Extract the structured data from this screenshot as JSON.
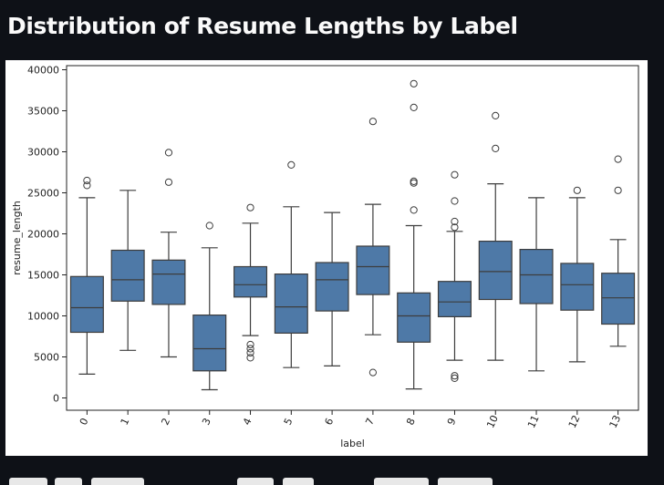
{
  "page": {
    "title": "Distribution of Resume Lengths by Label"
  },
  "chart_data": {
    "type": "box",
    "title": "",
    "xlabel": "label",
    "ylabel": "resume_length",
    "categories": [
      "0",
      "1",
      "2",
      "3",
      "4",
      "5",
      "6",
      "7",
      "8",
      "9",
      "10",
      "11",
      "12",
      "13"
    ],
    "ylim": [
      -1500,
      40500
    ],
    "yticks": [
      0,
      5000,
      10000,
      15000,
      20000,
      25000,
      30000,
      35000,
      40000
    ],
    "box_color": "#4e79a7",
    "line_color": "#3d3d3d",
    "grid": false,
    "boxes": [
      {
        "label": "0",
        "whisker_low": 2900,
        "q1": 8000,
        "median": 11000,
        "q3": 14800,
        "whisker_high": 24400,
        "outliers": [
          25900,
          26500
        ]
      },
      {
        "label": "1",
        "whisker_low": 5800,
        "q1": 11800,
        "median": 14400,
        "q3": 18000,
        "whisker_high": 25300,
        "outliers": []
      },
      {
        "label": "2",
        "whisker_low": 5000,
        "q1": 11400,
        "median": 15100,
        "q3": 16800,
        "whisker_high": 20200,
        "outliers": [
          26300,
          29900
        ]
      },
      {
        "label": "3",
        "whisker_low": 1000,
        "q1": 3300,
        "median": 6000,
        "q3": 10100,
        "whisker_high": 18300,
        "outliers": [
          21000
        ]
      },
      {
        "label": "4",
        "whisker_low": 7600,
        "q1": 12300,
        "median": 13800,
        "q3": 16000,
        "whisker_high": 21300,
        "outliers": [
          4900,
          5500,
          6000,
          6500,
          23200
        ]
      },
      {
        "label": "5",
        "whisker_low": 3700,
        "q1": 7900,
        "median": 11100,
        "q3": 15100,
        "whisker_high": 23300,
        "outliers": [
          28400
        ]
      },
      {
        "label": "6",
        "whisker_low": 3900,
        "q1": 10600,
        "median": 14400,
        "q3": 16500,
        "whisker_high": 22600,
        "outliers": []
      },
      {
        "label": "7",
        "whisker_low": 7700,
        "q1": 12600,
        "median": 16000,
        "q3": 18500,
        "whisker_high": 23600,
        "outliers": [
          3100,
          33700
        ]
      },
      {
        "label": "8",
        "whisker_low": 1100,
        "q1": 6800,
        "median": 10000,
        "q3": 12800,
        "whisker_high": 21000,
        "outliers": [
          22900,
          26200,
          26400,
          35400,
          38300
        ]
      },
      {
        "label": "9",
        "whisker_low": 4600,
        "q1": 9900,
        "median": 11700,
        "q3": 14200,
        "whisker_high": 20300,
        "outliers": [
          2400,
          2700,
          20800,
          21500,
          24000,
          27200
        ]
      },
      {
        "label": "10",
        "whisker_low": 4600,
        "q1": 12000,
        "median": 15400,
        "q3": 19100,
        "whisker_high": 26100,
        "outliers": [
          30400,
          34400
        ]
      },
      {
        "label": "11",
        "whisker_low": 3300,
        "q1": 11500,
        "median": 15000,
        "q3": 18100,
        "whisker_high": 24400,
        "outliers": []
      },
      {
        "label": "12",
        "whisker_low": 4400,
        "q1": 10700,
        "median": 13800,
        "q3": 16400,
        "whisker_high": 24400,
        "outliers": [
          25300
        ]
      },
      {
        "label": "13",
        "whisker_low": 6300,
        "q1": 9000,
        "median": 12200,
        "q3": 15200,
        "whisker_high": 19300,
        "outliers": [
          25300,
          29100
        ]
      }
    ]
  }
}
